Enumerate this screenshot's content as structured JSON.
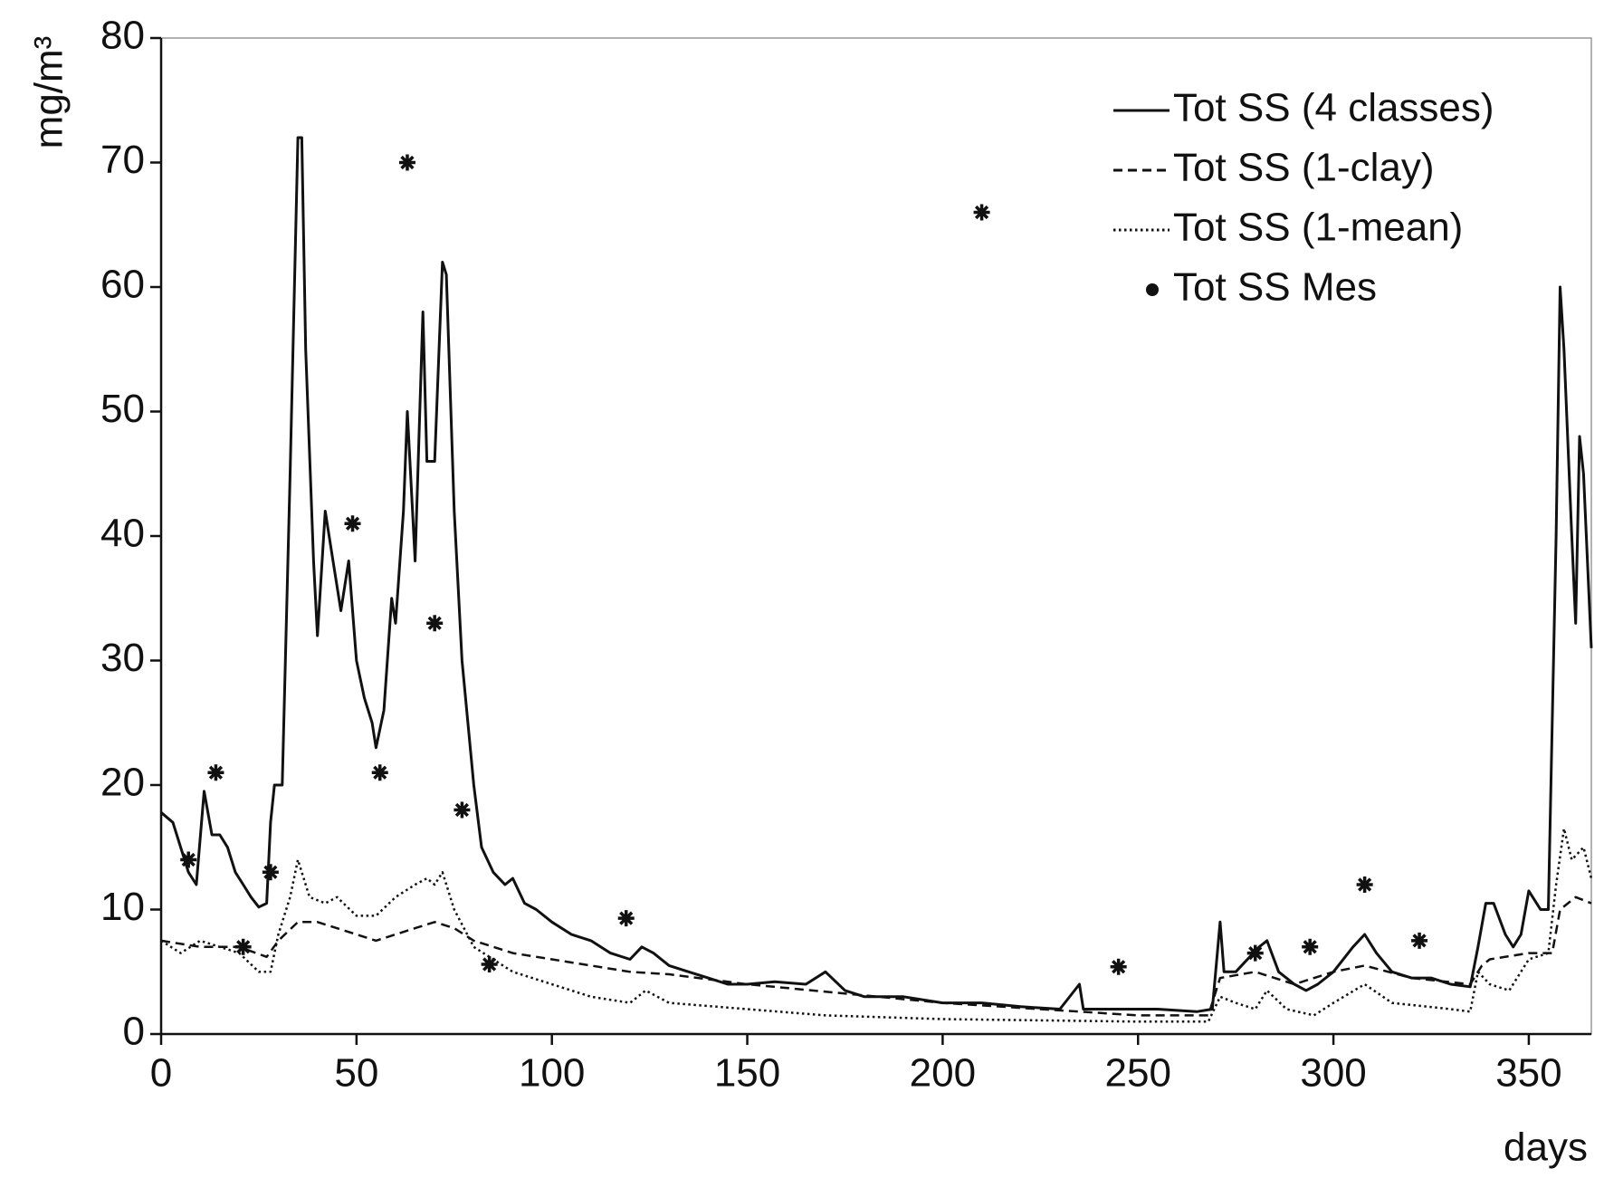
{
  "chart_data": {
    "type": "line",
    "y_label": "mg/m³",
    "x_label": "days",
    "xlim": [
      0,
      366
    ],
    "xticks": [
      0,
      50,
      100,
      150,
      200,
      250,
      300,
      350
    ],
    "ylim": [
      0,
      80
    ],
    "yticks": [
      0,
      10,
      20,
      30,
      40,
      50,
      60,
      70,
      80
    ],
    "legend": "upper right",
    "series": [
      {
        "name": "Tot SS (4 classes)",
        "color": "#111111",
        "line_style": "solid",
        "x": [
          0,
          3,
          5,
          7,
          9,
          11,
          13,
          15,
          17,
          19,
          21,
          23,
          25,
          27,
          28,
          29,
          31,
          33,
          35,
          36,
          37,
          39,
          40,
          42,
          44,
          46,
          48,
          50,
          52,
          54,
          55,
          57,
          59,
          60,
          62,
          63,
          65,
          67,
          68,
          70,
          72,
          73,
          75,
          77,
          80,
          82,
          85,
          88,
          90,
          93,
          96,
          100,
          105,
          110,
          115,
          120,
          123,
          126,
          130,
          135,
          140,
          145,
          150,
          157,
          165,
          170,
          175,
          180,
          190,
          200,
          210,
          220,
          230,
          235,
          236,
          245,
          255,
          265,
          269,
          271,
          272,
          275,
          278,
          281,
          283,
          286,
          290,
          293,
          296,
          300,
          305,
          308,
          311,
          315,
          320,
          325,
          330,
          335,
          337,
          339,
          341,
          344,
          346,
          348,
          350,
          353,
          355,
          357,
          358,
          359,
          361,
          362,
          363,
          364,
          366
        ],
        "values": [
          17.8,
          17,
          15,
          13,
          12,
          19.5,
          16,
          16,
          15,
          13,
          12,
          11,
          10.2,
          10.5,
          17,
          20,
          20,
          45,
          72,
          72,
          55,
          38,
          32,
          42,
          38,
          34,
          38,
          30,
          27,
          25,
          23,
          26,
          35,
          33,
          42,
          50,
          38,
          58,
          46,
          46,
          62,
          61,
          42,
          30,
          20,
          15,
          13,
          12,
          12.5,
          10.5,
          10,
          9,
          8,
          7.5,
          6.5,
          6,
          7,
          6.5,
          5.5,
          5,
          4.5,
          4,
          4,
          4.2,
          4,
          5,
          3.5,
          3,
          3,
          2.5,
          2.5,
          2.2,
          2,
          4,
          2,
          2,
          2,
          1.8,
          2,
          9,
          5,
          5,
          6,
          7,
          7.5,
          5,
          4,
          3.5,
          4,
          5,
          7,
          8,
          6.5,
          5,
          4.5,
          4.5,
          4,
          3.8,
          7,
          10.5,
          10.5,
          8,
          7,
          8,
          11.5,
          10,
          10,
          40,
          60,
          55,
          40,
          33,
          48,
          45,
          31
        ]
      },
      {
        "name": "Tot SS (1-clay)",
        "color": "#111111",
        "line_style": "dashed",
        "x": [
          0,
          10,
          20,
          27,
          30,
          35,
          40,
          50,
          55,
          60,
          65,
          70,
          75,
          80,
          90,
          100,
          120,
          130,
          150,
          200,
          250,
          268,
          271,
          280,
          290,
          300,
          308,
          320,
          335,
          338,
          340,
          350,
          356,
          358,
          362,
          366
        ],
        "values": [
          7.5,
          7,
          7,
          6.2,
          7.5,
          9,
          9,
          8,
          7.5,
          8,
          8.5,
          9,
          8.5,
          7.5,
          6.5,
          6,
          5,
          4.8,
          4,
          2.5,
          1.5,
          1.5,
          4.5,
          5,
          4,
          5,
          5.5,
          4.5,
          4,
          5.5,
          6,
          6.5,
          6.5,
          10,
          11,
          10.5
        ]
      },
      {
        "name": "Tot SS (1-mean)",
        "color": "#111111",
        "line_style": "dotted",
        "x": [
          0,
          5,
          10,
          15,
          20,
          25,
          28,
          30,
          33,
          35,
          38,
          42,
          45,
          50,
          55,
          60,
          65,
          68,
          70,
          72,
          75,
          80,
          90,
          100,
          110,
          120,
          124,
          130,
          150,
          170,
          200,
          250,
          268,
          271,
          275,
          280,
          283,
          288,
          295,
          300,
          308,
          315,
          330,
          335,
          337,
          340,
          345,
          350,
          355,
          357,
          359,
          361,
          364,
          366
        ],
        "values": [
          7.5,
          6.5,
          7.5,
          7,
          6.5,
          5,
          5,
          8,
          11,
          14,
          11,
          10.5,
          11,
          9.5,
          9.5,
          11,
          12,
          12.5,
          12,
          13,
          10,
          7,
          5,
          4,
          3,
          2.5,
          3.5,
          2.5,
          2,
          1.5,
          1.2,
          1,
          1,
          3,
          2.5,
          2,
          3.5,
          2,
          1.5,
          2.5,
          4,
          2.5,
          2,
          1.8,
          5,
          4,
          3.5,
          6,
          6.5,
          12,
          16.5,
          14,
          15,
          12.5
        ]
      },
      {
        "name": "Tot SS Mes",
        "color": "#111111",
        "marker": "star",
        "x": [
          7,
          14,
          21,
          28,
          49,
          56,
          63,
          70,
          77,
          84,
          119,
          210,
          245,
          280,
          294,
          308,
          322
        ],
        "values": [
          14,
          21,
          7,
          13,
          41,
          21,
          70,
          33,
          18,
          5.6,
          9.3,
          66,
          5.4,
          6.5,
          7,
          12,
          7.5
        ]
      }
    ]
  }
}
